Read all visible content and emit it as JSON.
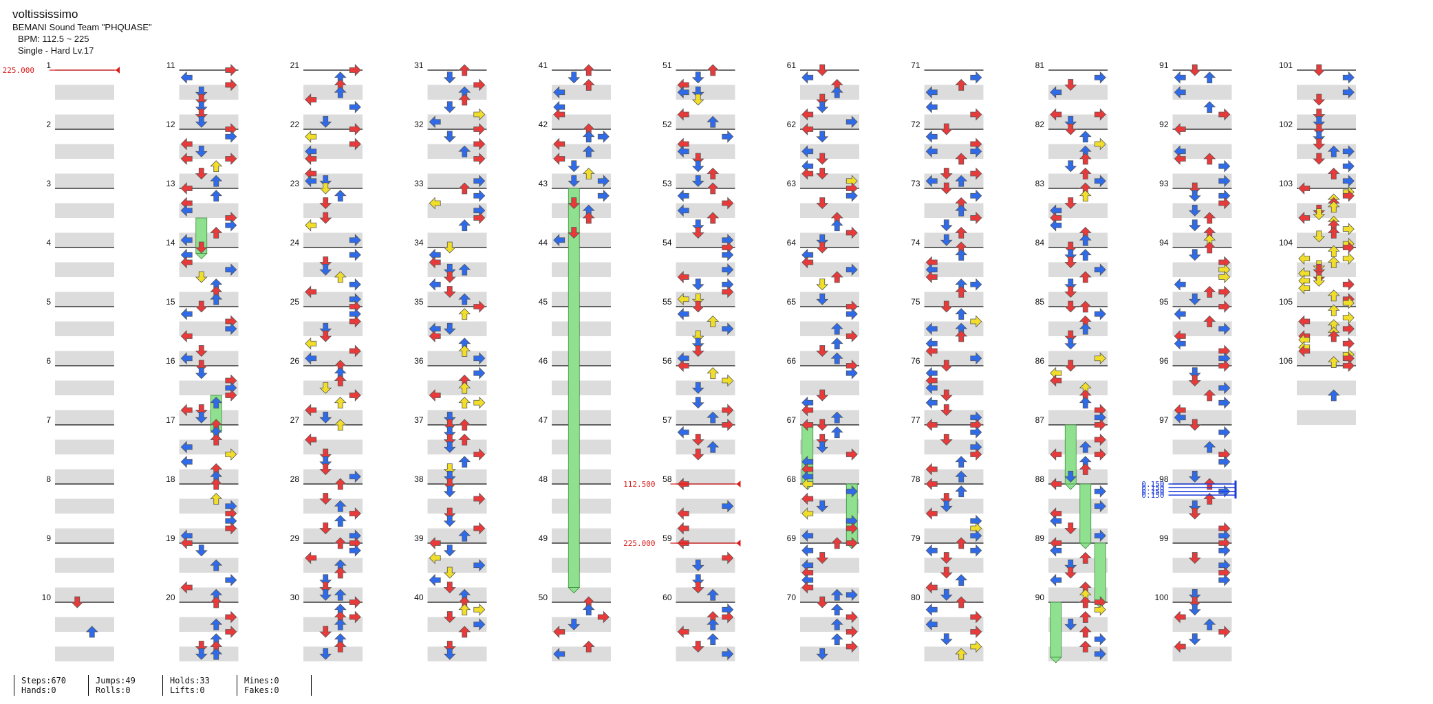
{
  "header": {
    "title": "voltississimo",
    "artist": "BEMANI Sound Team \"PHQUASE\"",
    "bpm": "BPM: 112.5 ~ 225",
    "difficulty": "Single - Hard  Lv.17"
  },
  "stats": {
    "steps": "Steps:670",
    "hands": "Hands:0",
    "jumps": "Jumps:49",
    "rolls": "Rolls:0",
    "holds": "Holds:33",
    "lifts": "Lifts:0",
    "mines": "Mines:0",
    "fakes": "Fakes:0"
  },
  "chart": {
    "measure_count": 106,
    "measures_per_column": 10,
    "bpm_changes": [
      {
        "measure": 1,
        "label": "225.000"
      },
      {
        "measure": 58,
        "label": "112.500"
      },
      {
        "measure": 59,
        "label": "225.000"
      }
    ],
    "stops": [
      {
        "measure": 98,
        "label": "0.150"
      },
      {
        "measure": 98.25,
        "label": "0.150"
      },
      {
        "measure": 98.5,
        "label": "0.150"
      },
      {
        "measure": 98.75,
        "label": "0.150"
      }
    ],
    "long_holds": [
      {
        "start": 43,
        "end": 49.75
      },
      {
        "start": 13.5,
        "end": 14.1
      },
      {
        "start": 16.5,
        "end": 17.1
      },
      {
        "start": 68,
        "end": 69
      },
      {
        "start": 67,
        "end": 68
      },
      {
        "start": 87,
        "end": 88
      },
      {
        "start": 88,
        "end": 89
      },
      {
        "start": 89,
        "end": 90
      },
      {
        "start": 90,
        "end": 91
      }
    ],
    "colors": {
      "quarter": "#e83a3a",
      "eighth": "#2f6be8",
      "sixteenth": "#f0de2a",
      "twelfth": "#a83ae8",
      "hold": "#8fe08f",
      "bpm": "#d81c1c",
      "stop": "#1a3ad8"
    }
  }
}
